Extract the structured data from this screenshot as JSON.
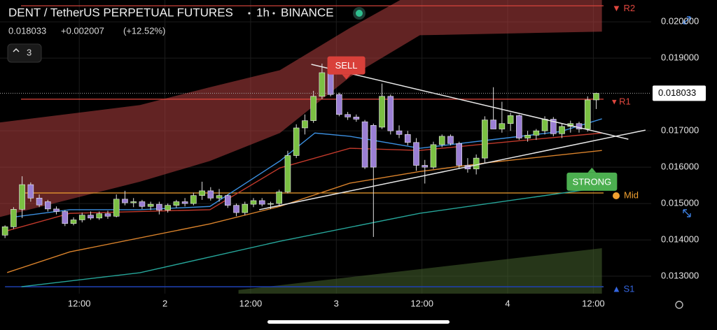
{
  "chart_data": {
    "type": "candlestick",
    "title": "DENT / TetherUS PERPETUAL FUTURES",
    "interval": "1h",
    "exchange": "BINANCE",
    "header": {
      "price": 0.018033,
      "change": {
        "value": 0.002007,
        "label": "+0.002007"
      },
      "change_pct": {
        "value": 12.52,
        "label": "(+12.52%)"
      }
    },
    "indicator_count": 3,
    "up_color": "#7bc043",
    "down_color": "#9b7fd4",
    "xlim": [
      0.9,
      92.1
    ],
    "ylim": [
      0.01252,
      0.0206
    ],
    "xticks": [
      {
        "value": 12,
        "label": "12:00"
      },
      {
        "value": 24,
        "label": "2"
      },
      {
        "value": 36,
        "label": "12:00"
      },
      {
        "value": 48,
        "label": "3"
      },
      {
        "value": 60,
        "label": "12:00"
      },
      {
        "value": 72,
        "label": "4"
      },
      {
        "value": 84,
        "label": "12:00"
      }
    ],
    "yticks": [
      {
        "value": 0.013,
        "label": "0.013000"
      },
      {
        "value": 0.014,
        "label": "0.014000"
      },
      {
        "value": 0.015,
        "label": "0.015000"
      },
      {
        "value": 0.016,
        "label": "0.016000"
      },
      {
        "value": 0.017,
        "label": "0.017000"
      },
      {
        "value": 0.019,
        "label": "0.019000"
      },
      {
        "value": 0.02,
        "label": "0.020000"
      }
    ],
    "last_price": 0.018033,
    "x": [
      1.6,
      2.8,
      4,
      5.2,
      6.4,
      7.6,
      8.8,
      10,
      11.2,
      12.4,
      13.6,
      14.8,
      16,
      17.2,
      18.4,
      19.6,
      20.8,
      22,
      23.2,
      24.4,
      25.6,
      26.8,
      28,
      29.2,
      30.4,
      31.6,
      32.8,
      34,
      35.2,
      36.4,
      37.6,
      38.8,
      40,
      41.2,
      42.4,
      43.6,
      44.8,
      46,
      47.2,
      48.4,
      49.6,
      50.8,
      52,
      53.2,
      54.4,
      55.6,
      56.8,
      58,
      59.2,
      60.4,
      61.6,
      62.8,
      64,
      65.2,
      66.4,
      67.6,
      68.8,
      70,
      71.2,
      72.4,
      73.6,
      74.8,
      76,
      77.2,
      78.4,
      79.6,
      80.8,
      82,
      83.2,
      84.4
    ],
    "open": [
      0.01413,
      0.01436,
      0.01484,
      0.01552,
      0.01515,
      0.01505,
      0.01485,
      0.01478,
      0.01445,
      0.01455,
      0.01468,
      0.0146,
      0.01472,
      0.01465,
      0.01512,
      0.01502,
      0.01505,
      0.01492,
      0.01498,
      0.01482,
      0.01495,
      0.01505,
      0.015,
      0.01522,
      0.01535,
      0.01515,
      0.01522,
      0.01495,
      0.01475,
      0.01498,
      0.01508,
      0.01498,
      0.015,
      0.01532,
      0.01632,
      0.01708,
      0.01728,
      0.01795,
      0.0186,
      0.018,
      0.01745,
      0.01738,
      0.01725,
      0.01715,
      0.0171,
      0.01795,
      0.017,
      0.0169,
      0.01668,
      0.01605,
      0.016,
      0.01662,
      0.01685,
      0.01665,
      0.01605,
      0.01595,
      0.01625,
      0.0173,
      0.01705,
      0.0172,
      0.01742,
      0.0168,
      0.01688,
      0.017,
      0.01732,
      0.01692,
      0.01712,
      0.0172,
      0.01705,
      0.01785
    ],
    "high": [
      0.0144,
      0.0149,
      0.01575,
      0.01558,
      0.01525,
      0.0151,
      0.01492,
      0.01482,
      0.01462,
      0.01475,
      0.01478,
      0.01478,
      0.0148,
      0.01525,
      0.01535,
      0.01515,
      0.0151,
      0.01505,
      0.01505,
      0.015,
      0.0151,
      0.01515,
      0.0153,
      0.0156,
      0.01545,
      0.0154,
      0.01525,
      0.015,
      0.01505,
      0.01515,
      0.01515,
      0.01505,
      0.01538,
      0.01645,
      0.01718,
      0.01745,
      0.0181,
      0.01885,
      0.01865,
      0.01805,
      0.01752,
      0.01745,
      0.0173,
      0.0172,
      0.0183,
      0.018,
      0.01715,
      0.017,
      0.0168,
      0.0162,
      0.0167,
      0.0169,
      0.0169,
      0.0167,
      0.01625,
      0.01635,
      0.0174,
      0.0182,
      0.0178,
      0.0175,
      0.01745,
      0.017,
      0.01705,
      0.0174,
      0.01738,
      0.0172,
      0.01728,
      0.01725,
      0.01795,
      0.01805
    ],
    "low": [
      0.01405,
      0.0143,
      0.0146,
      0.01505,
      0.0149,
      0.01478,
      0.0147,
      0.01438,
      0.0144,
      0.01448,
      0.01455,
      0.01455,
      0.01458,
      0.01462,
      0.01495,
      0.0149,
      0.01485,
      0.01482,
      0.0147,
      0.01475,
      0.01488,
      0.01492,
      0.01495,
      0.0151,
      0.01508,
      0.01505,
      0.01488,
      0.01465,
      0.01468,
      0.0149,
      0.01492,
      0.01485,
      0.01495,
      0.01528,
      0.01625,
      0.0169,
      0.01722,
      0.01788,
      0.01795,
      0.0174,
      0.0173,
      0.01725,
      0.01595,
      0.01408,
      0.01705,
      0.0169,
      0.0168,
      0.0166,
      0.0159,
      0.01555,
      0.01595,
      0.01655,
      0.0166,
      0.01595,
      0.01585,
      0.0158,
      0.0161,
      0.01705,
      0.01695,
      0.017,
      0.01675,
      0.0167,
      0.01675,
      0.0169,
      0.01685,
      0.0168,
      0.01695,
      0.01695,
      0.01698,
      0.0176
    ],
    "close": [
      0.01436,
      0.01484,
      0.01552,
      0.01515,
      0.01496,
      0.01485,
      0.01478,
      0.01445,
      0.01455,
      0.01468,
      0.0146,
      0.01472,
      0.01465,
      0.01512,
      0.01502,
      0.01505,
      0.01492,
      0.01498,
      0.01482,
      0.01495,
      0.01505,
      0.015,
      0.01522,
      0.01535,
      0.01515,
      0.01522,
      0.01495,
      0.01475,
      0.01498,
      0.01508,
      0.01498,
      0.015,
      0.01532,
      0.01632,
      0.01708,
      0.01728,
      0.01795,
      0.0186,
      0.018,
      0.01745,
      0.01738,
      0.01732,
      0.016,
      0.016,
      0.01795,
      0.017,
      0.0169,
      0.01668,
      0.01605,
      0.016,
      0.01662,
      0.01685,
      0.01665,
      0.01605,
      0.01595,
      0.01625,
      0.0173,
      0.01705,
      0.0172,
      0.01742,
      0.0168,
      0.01688,
      0.017,
      0.01732,
      0.01692,
      0.01712,
      0.0172,
      0.01705,
      0.01785,
      0.018033
    ],
    "overlays": [
      {
        "color": "#1e3fae",
        "x": [
          1.6,
          85.2
        ],
        "values": [
          0.01271,
          0.01271
        ]
      },
      {
        "color": "#26a69a",
        "x": [
          3.9,
          20.5,
          40.1,
          59.7,
          85.2
        ],
        "values": [
          0.012712,
          0.013096,
          0.013962,
          0.014731,
          0.015442
        ]
      },
      {
        "color": "#d9822b",
        "x": [
          1.9,
          10.7,
          30.3,
          40.1,
          49.9,
          59.7,
          69.5,
          85.2
        ],
        "values": [
          0.0131,
          0.01367,
          0.01444,
          0.01492,
          0.01556,
          0.01588,
          0.01613,
          0.01646
        ]
      },
      {
        "color": "#c0392b",
        "x": [
          1.9,
          10.7,
          30.3,
          40.1,
          49.9,
          59.7,
          69.5,
          85.2
        ],
        "values": [
          0.01425,
          0.01473,
          0.01483,
          0.01598,
          0.01652,
          0.01646,
          0.01665,
          0.01694
        ]
      },
      {
        "color": "#3b8ede",
        "x": [
          2.9,
          10.7,
          20.5,
          30.3,
          40.1,
          45.0,
          49.9,
          59.7,
          69.5,
          79.4,
          85.2
        ],
        "values": [
          0.01463,
          0.01483,
          0.01483,
          0.01492,
          0.01617,
          0.01694,
          0.01685,
          0.01652,
          0.01675,
          0.01698,
          0.01733
        ]
      }
    ],
    "cloud": {
      "color": "#b3403f",
      "x": [
        0.9,
        20.5,
        30.3,
        40.1,
        49.9,
        59.7,
        85.2
      ],
      "upper": [
        0.01723,
        0.01771,
        0.0182,
        0.01867,
        0.01983,
        0.0209,
        0.0209
      ],
      "lower": [
        0.01463,
        0.0156,
        0.01617,
        0.01694,
        0.01848,
        0.01963,
        0.01973
      ]
    },
    "volume_cloud": {
      "color": "#3f5a2a",
      "x": [
        34.3,
        85.2
      ],
      "upper": [
        0.01262,
        0.01377
      ]
    },
    "trendlines": [
      {
        "color": "#e8e8e8",
        "x": [
          44.5,
          88.9
        ],
        "values": [
          0.01883,
          0.01677
        ]
      },
      {
        "color": "#e8e8e8",
        "x": [
          37.2,
          91.3
        ],
        "values": [
          0.01483,
          0.01702
        ]
      }
    ],
    "levels": [
      {
        "name": "▼ R2",
        "value": 0.02044,
        "color": "#e0473e"
      },
      {
        "name": "▾ R1",
        "value": 0.01787,
        "color": "#e0473e"
      },
      {
        "name": "Mid",
        "value": 0.01529,
        "color": "#f0a030"
      },
      {
        "name": "▲ S1",
        "value": 0.01271,
        "color": "#3466e0"
      }
    ],
    "signals": [
      {
        "label": "SELL",
        "x": 49.4,
        "value": 0.0188,
        "color": "#d9403a"
      },
      {
        "label": "STRONG",
        "x": 83.8,
        "value": 0.0156,
        "color": "#4caf50"
      }
    ]
  }
}
